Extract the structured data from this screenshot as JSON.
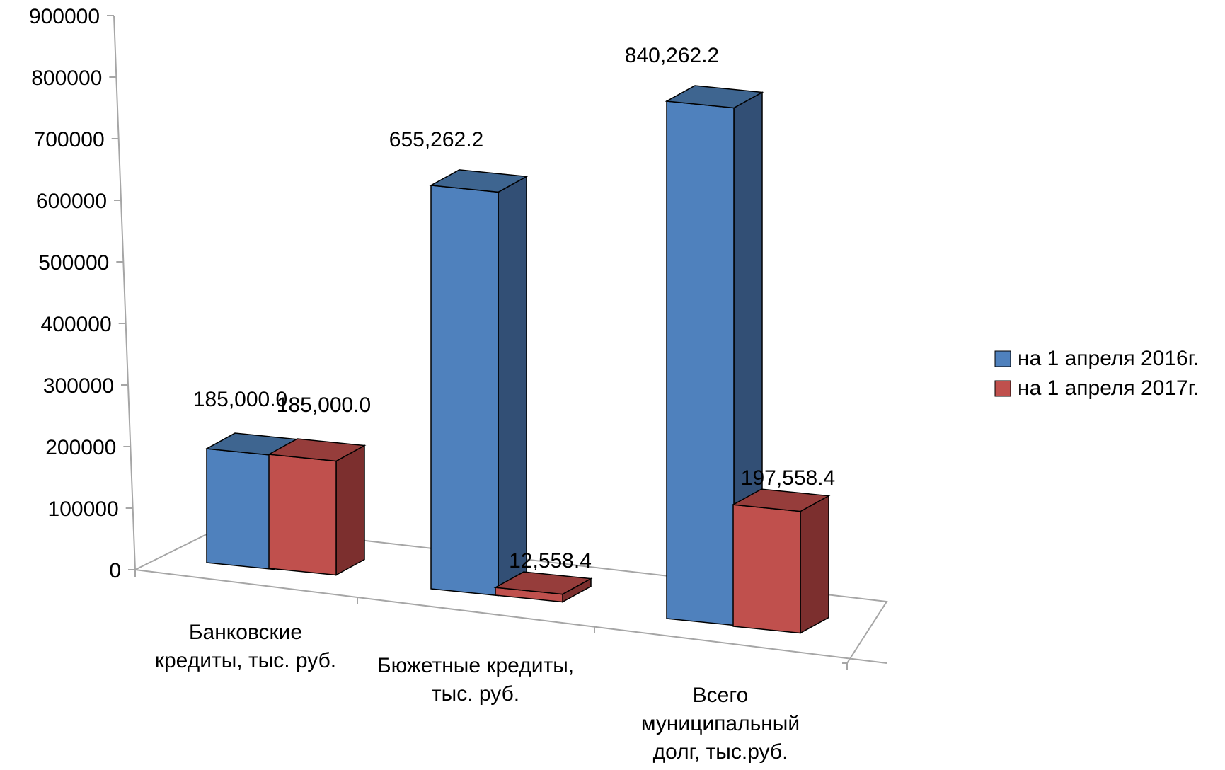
{
  "chart_data": {
    "type": "bar",
    "style": "3d-clustered-column",
    "categories": [
      [
        "Банковские",
        "кредиты, тыс. руб."
      ],
      [
        "Бюжетные кредиты,",
        "тыс. руб."
      ],
      [
        "Всего",
        "муниципальный",
        "долг, тыс.руб."
      ]
    ],
    "series": [
      {
        "name": "на 1 апреля 2016г.",
        "values": [
          185000.0,
          655262.2,
          840262.2
        ],
        "labels": [
          "185,000.0",
          "655,262.2",
          "840,262.2"
        ]
      },
      {
        "name": "на 1 апреля 2017г.",
        "values": [
          185000.0,
          12558.4,
          197558.4
        ],
        "labels": [
          "185,000.0",
          "12,558.4",
          "197,558.4"
        ]
      }
    ],
    "colors": {
      "series_front": [
        "#4f81bd",
        "#c0504d"
      ],
      "series_top": [
        "#3e6590",
        "#963d3b"
      ],
      "series_side": [
        "#324f75",
        "#7c2f2e"
      ],
      "axis": "#a6a6a6"
    },
    "yticks": [
      0,
      100000,
      200000,
      300000,
      400000,
      500000,
      600000,
      700000,
      800000,
      900000
    ],
    "ylim": [
      0,
      900000
    ],
    "legend_position": "right"
  }
}
